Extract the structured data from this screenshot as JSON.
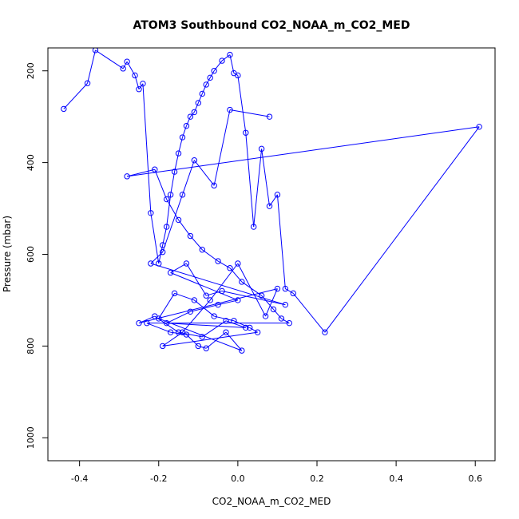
{
  "chart_data": {
    "type": "line",
    "title": "ATOM3 Southbound CO2_NOAA_m_CO2_MED",
    "xlabel": "CO2_NOAA_m_CO2_MED",
    "ylabel": "Pressure (mbar)",
    "xlim": [
      -0.48,
      0.65
    ],
    "ylim": [
      1050,
      150
    ],
    "y_reversed": true,
    "grid": false,
    "legend": "none",
    "line_color": "#0000ff",
    "marker": "open-circle",
    "x_ticks": [
      {
        "v": -0.4,
        "label": "-0.4"
      },
      {
        "v": -0.2,
        "label": "-0.2"
      },
      {
        "v": 0.0,
        "label": "0.0"
      },
      {
        "v": 0.2,
        "label": "0.2"
      },
      {
        "v": 0.4,
        "label": "0.4"
      },
      {
        "v": 0.6,
        "label": "0.6"
      }
    ],
    "y_ticks": [
      {
        "v": 200,
        "label": "200"
      },
      {
        "v": 400,
        "label": "400"
      },
      {
        "v": 600,
        "label": "600"
      },
      {
        "v": 800,
        "label": "800"
      },
      {
        "v": 1000,
        "label": "1000"
      }
    ],
    "x": [
      -0.44,
      -0.38,
      -0.36,
      -0.29,
      -0.28,
      -0.26,
      -0.25,
      -0.24,
      -0.22,
      -0.2,
      -0.19,
      -0.18,
      -0.17,
      -0.16,
      -0.15,
      -0.14,
      -0.13,
      -0.12,
      -0.11,
      -0.1,
      -0.09,
      -0.08,
      -0.07,
      -0.06,
      -0.04,
      -0.02,
      -0.01,
      0.0,
      0.02,
      0.04,
      0.06,
      0.08,
      0.1,
      0.12,
      0.14,
      0.22,
      0.61,
      -0.28,
      -0.21,
      -0.18,
      -0.15,
      -0.12,
      -0.09,
      -0.05,
      -0.02,
      0.01,
      0.06,
      0.09,
      0.11,
      0.13,
      -0.23,
      -0.17,
      -0.13,
      -0.1,
      -0.08,
      -0.03,
      0.01,
      -0.2,
      -0.16,
      -0.11,
      -0.06,
      -0.01,
      0.03,
      0.05,
      -0.19,
      -0.14,
      -0.07,
      0.0,
      0.07,
      0.1,
      -0.25,
      -0.21,
      -0.15,
      -0.09,
      -0.03,
      0.02,
      -0.18,
      -0.12,
      -0.05,
      0.0,
      -0.17,
      -0.13,
      -0.08,
      -0.04,
      0.12,
      -0.22,
      -0.19,
      -0.14,
      -0.11,
      -0.06,
      -0.02,
      0.08
    ],
    "y": [
      283,
      227,
      155,
      195,
      180,
      210,
      240,
      228,
      510,
      620,
      580,
      540,
      470,
      420,
      380,
      345,
      320,
      300,
      290,
      270,
      250,
      230,
      215,
      200,
      178,
      165,
      205,
      210,
      335,
      540,
      370,
      495,
      470,
      675,
      685,
      770,
      322,
      430,
      415,
      480,
      525,
      560,
      590,
      615,
      630,
      660,
      690,
      720,
      740,
      750,
      750,
      770,
      775,
      800,
      805,
      770,
      810,
      740,
      685,
      700,
      735,
      745,
      760,
      770,
      800,
      770,
      700,
      620,
      735,
      675,
      750,
      735,
      770,
      780,
      745,
      760,
      750,
      725,
      710,
      700,
      640,
      620,
      690,
      680,
      710,
      620,
      595,
      470,
      395,
      450,
      285,
      300
    ]
  }
}
